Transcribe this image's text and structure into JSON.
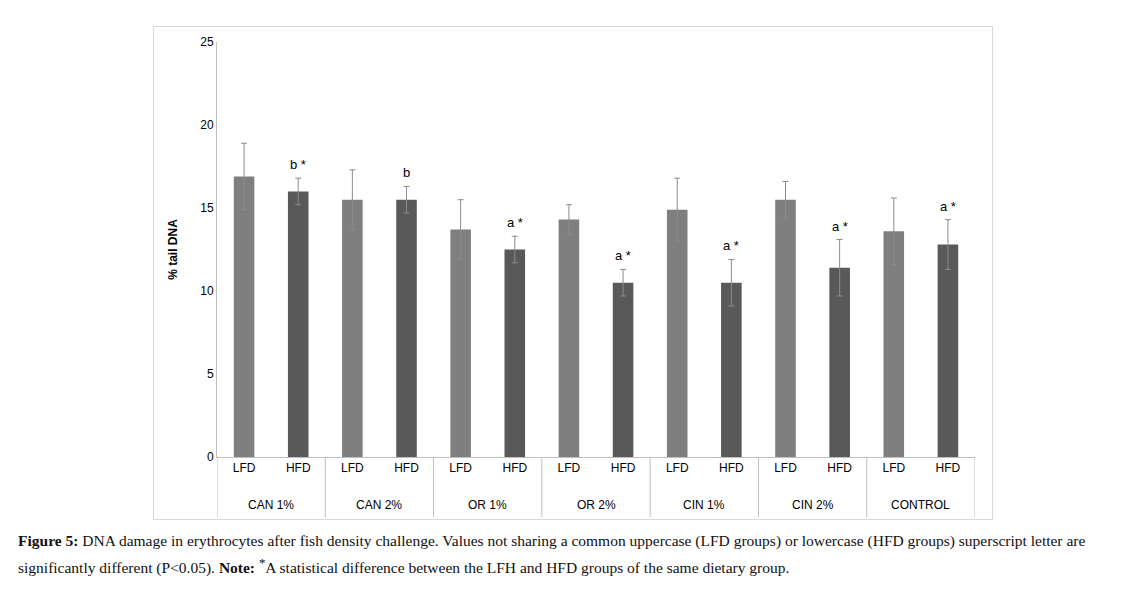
{
  "chart_data": {
    "type": "bar",
    "ylabel": "% tail DNA",
    "groups": [
      "CAN 1%",
      "CAN 2%",
      "OR 1%",
      "OR 2%",
      "CIN 1%",
      "CIN 2%",
      "CONTROL"
    ],
    "series": [
      {
        "name": "LFD",
        "color": "#7f7f7f",
        "values": [
          16.9,
          15.5,
          13.7,
          14.3,
          14.9,
          15.5,
          13.6
        ],
        "error": [
          2.0,
          1.8,
          1.8,
          0.9,
          1.9,
          1.1,
          2.0
        ]
      },
      {
        "name": "HFD",
        "color": "#595959",
        "values": [
          16.0,
          15.5,
          12.5,
          10.5,
          10.5,
          11.4,
          12.8
        ],
        "error": [
          0.8,
          0.8,
          0.8,
          0.8,
          1.4,
          1.7,
          1.5
        ],
        "annotations": [
          "b *",
          "b",
          "a *",
          "a *",
          "a *",
          "a *",
          "a *"
        ]
      }
    ],
    "ylim": [
      0,
      25
    ],
    "yticks": [
      0,
      5,
      10,
      15,
      20,
      25
    ],
    "grid": false,
    "caption": {
      "label": "Figure 5:",
      "text": "DNA damage in erythrocytes after fish density challenge. Values not sharing a common uppercase (LFD groups) or lowercase (HFD groups) superscript letter are significantly different (P<0.05).",
      "note_label": "Note:",
      "note_mark": "*",
      "note": "A statistical difference between the LFH and HFD groups of the same dietary group."
    }
  }
}
